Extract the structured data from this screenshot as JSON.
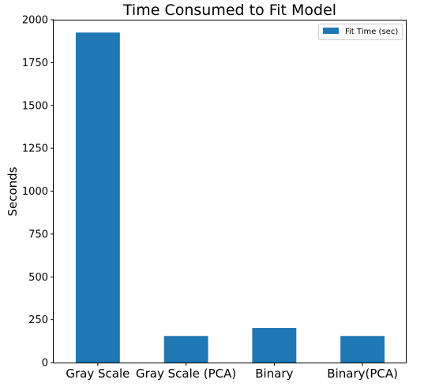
{
  "chart_data": {
    "type": "bar",
    "title": "Time Consumed to Fit Model",
    "xlabel": "",
    "ylabel": "Seconds",
    "categories": [
      "Gray Scale",
      "Gray Scale (PCA)",
      "Binary",
      "Binary(PCA)"
    ],
    "series": [
      {
        "name": "Fit Time (sec)",
        "color": "#1f77b4",
        "values": [
          1925,
          155,
          202,
          155
        ]
      }
    ],
    "ylim": [
      0,
      2000
    ],
    "yticks": [
      "0",
      "250",
      "500",
      "750",
      "1000",
      "1250",
      "1500",
      "1750",
      "2000"
    ],
    "grid": false,
    "legend": "top-right"
  }
}
